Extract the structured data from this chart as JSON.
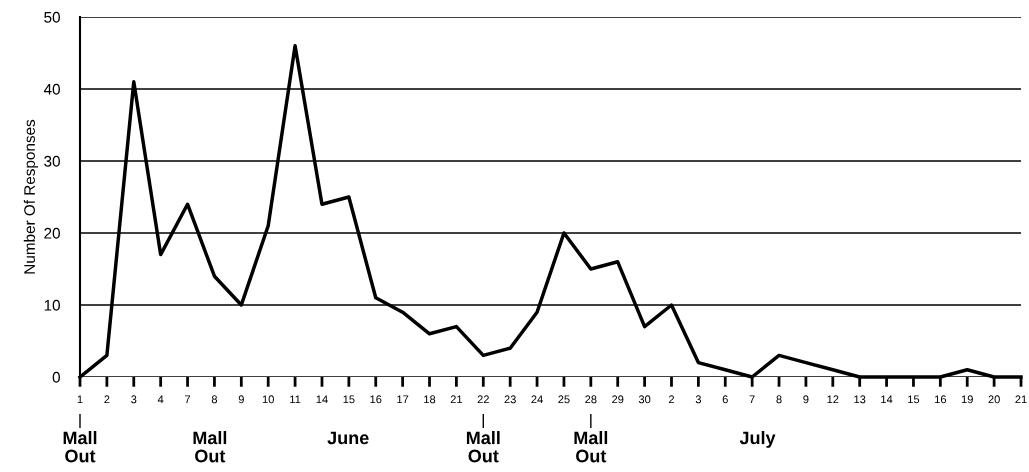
{
  "chart_data": {
    "type": "line",
    "ylabel": "Number Of Responses",
    "categories": [
      "1",
      "2",
      "3",
      "4",
      "7",
      "8",
      "9",
      "10",
      "11",
      "14",
      "15",
      "16",
      "17",
      "18",
      "21",
      "22",
      "23",
      "24",
      "25",
      "28",
      "29",
      "30",
      "2",
      "3",
      "6",
      "7",
      "8",
      "9",
      "12",
      "13",
      "14",
      "15",
      "16",
      "19",
      "20",
      "21"
    ],
    "series": [
      {
        "color": "#000000",
        "values": [
          0,
          3,
          41,
          17,
          24,
          14,
          10,
          21,
          46,
          24,
          25,
          11,
          9,
          6,
          7,
          3,
          4,
          9,
          20,
          15,
          16,
          7,
          10,
          2,
          1,
          0,
          3,
          2,
          1,
          0,
          0,
          0,
          0,
          1,
          0,
          0
        ]
      }
    ],
    "ylim": [
      0,
      50
    ],
    "yticks": [
      0,
      10,
      20,
      30,
      40,
      50
    ],
    "grid": "y",
    "marker": "none",
    "line_style": "solid",
    "legend": false,
    "annotations": [
      {
        "text": "Mall\nOut",
        "x": "1"
      },
      "Mall\nOut",
      "June",
      {
        "text": "Mall\nOut",
        "x": "22"
      },
      {
        "text": "Mall\nOut",
        "x": "28"
      },
      "July"
    ]
  }
}
